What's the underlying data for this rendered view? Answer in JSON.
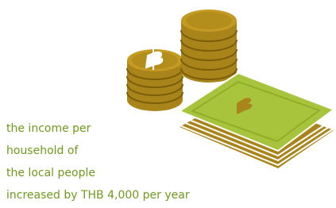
{
  "caption": {
    "lines": [
      "the income per",
      "household of",
      "the local people",
      "increased by THB 4,000 per year"
    ]
  }
}
